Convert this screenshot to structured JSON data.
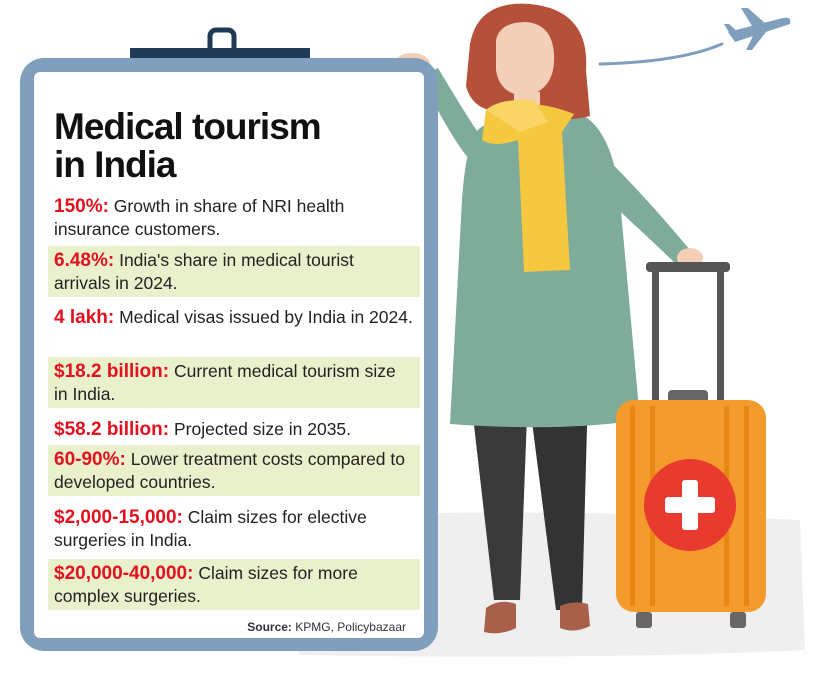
{
  "infographic": {
    "title_lines": [
      "Medical tourism",
      "in India"
    ],
    "facts": [
      {
        "figure": "150%:",
        "text": "Growth in share of NRI health insurance customers."
      },
      {
        "figure": "6.48%:",
        "text": "India's share in medical tourist arrivals in 2024."
      },
      {
        "figure": "4 lakh:",
        "text": "Medical visas issued by India in 2024."
      },
      {
        "figure": "$18.2 billion:",
        "text": "Current medical tourism size in India."
      },
      {
        "figure": "$58.2 billion:",
        "text": "Projected size in 2035."
      },
      {
        "figure": "60-90%:",
        "text": "Lower treatment costs compared to developed countries."
      },
      {
        "figure": "$2,000-15,000:",
        "text": "Claim sizes for elective surgeries in India."
      },
      {
        "figure": "$20,000-40,000:",
        "text": "Claim sizes for more complex surgeries."
      }
    ],
    "source_label": "Source:",
    "source_text": "KPMG, Policybazaar"
  },
  "colors": {
    "figure_red": "#e3101e",
    "clipboard_blue": "#7f9fbd",
    "shade_green": "#e8f0cc",
    "coat_green": "#7fab9a",
    "scarf_yellow": "#f5c83f",
    "suitcase_orange": "#f59a2c",
    "cross_red": "#e83a2f"
  },
  "icons": [
    "clipboard-clip-icon",
    "airplane-icon",
    "medical-cross-icon",
    "suitcase-icon",
    "traveler-woman-illustration"
  ]
}
